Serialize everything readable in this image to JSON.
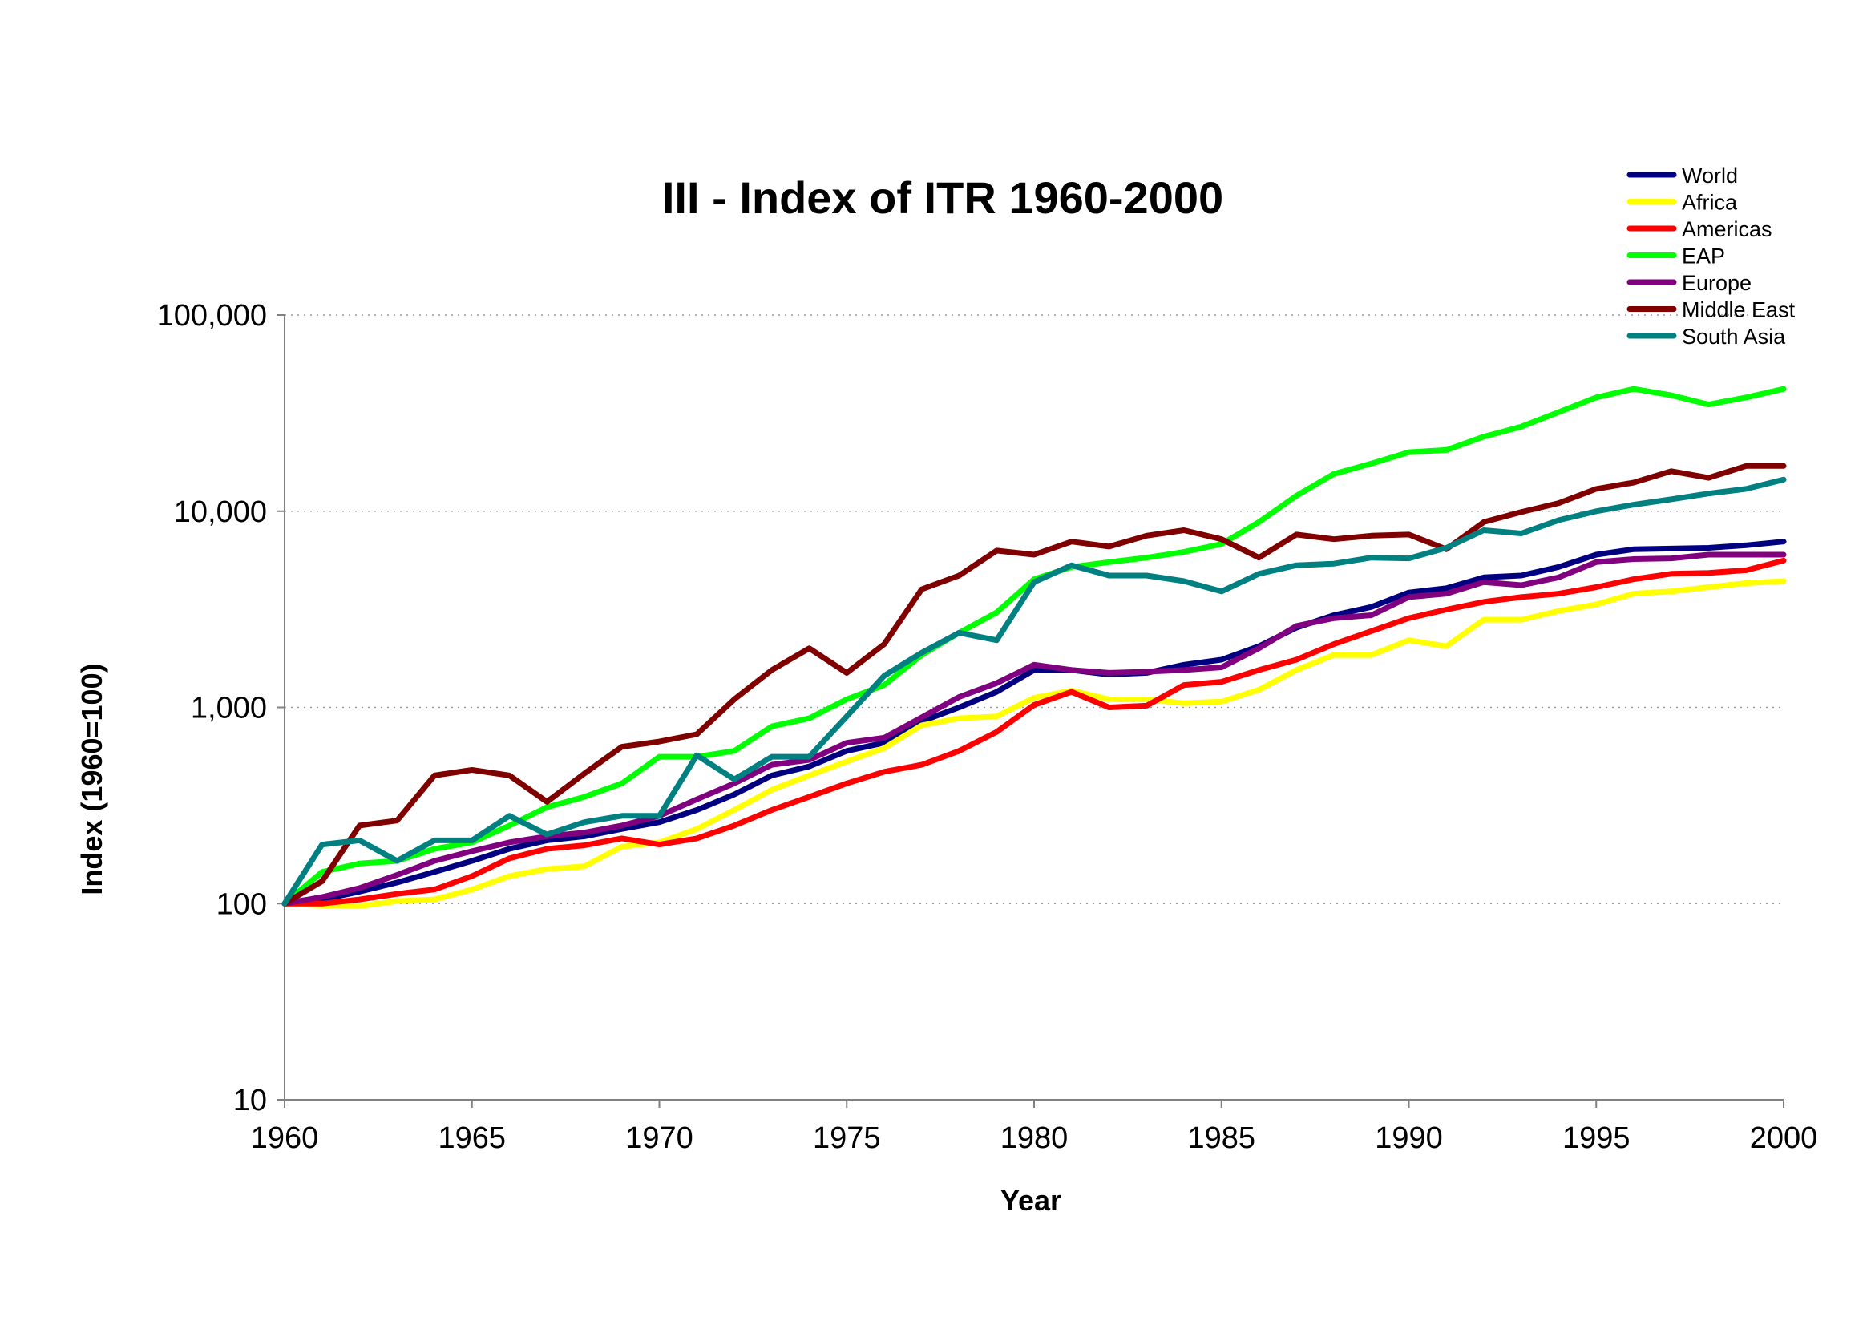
{
  "chart_data": {
    "type": "line",
    "title": "III - Index of ITR 1960-2000",
    "xlabel": "Year",
    "ylabel": "Index (1960=100)",
    "yscale": "log",
    "xlim": [
      1960,
      2000
    ],
    "ylim": [
      10,
      100000
    ],
    "xticks": [
      1960,
      1965,
      1970,
      1975,
      1980,
      1985,
      1990,
      1995,
      2000
    ],
    "xtick_labels": [
      "1960",
      "1965",
      "1970",
      "1975",
      "1980",
      "1985",
      "1990",
      "1995",
      "2000"
    ],
    "yticks": [
      10,
      100,
      1000,
      10000,
      100000
    ],
    "ytick_labels": [
      "10",
      "100",
      "1,000",
      "10,000",
      "100,000"
    ],
    "grid": "horizontal dotted",
    "legend": "top-right",
    "x": [
      1960,
      1961,
      1962,
      1963,
      1964,
      1965,
      1966,
      1967,
      1968,
      1969,
      1970,
      1971,
      1972,
      1973,
      1974,
      1975,
      1976,
      1977,
      1978,
      1979,
      1980,
      1981,
      1982,
      1983,
      1984,
      1985,
      1986,
      1987,
      1988,
      1989,
      1990,
      1991,
      1992,
      1993,
      1994,
      1995,
      1996,
      1997,
      1998,
      1999,
      2000
    ],
    "series": [
      {
        "name": "World",
        "color": "#000080",
        "values": [
          100,
          105,
          115,
          128,
          145,
          165,
          190,
          210,
          220,
          240,
          260,
          300,
          360,
          450,
          500,
          600,
          660,
          850,
          1000,
          1200,
          1550,
          1550,
          1470,
          1500,
          1650,
          1750,
          2050,
          2550,
          2950,
          3250,
          3850,
          4050,
          4600,
          4700,
          5200,
          6000,
          6400,
          6450,
          6500,
          6700,
          7000
        ]
      },
      {
        "name": "Africa",
        "color": "#FFFF00",
        "values": [
          100,
          98,
          97,
          103,
          105,
          118,
          138,
          150,
          155,
          195,
          205,
          240,
          300,
          380,
          450,
          530,
          620,
          810,
          880,
          900,
          1120,
          1220,
          1100,
          1100,
          1050,
          1070,
          1230,
          1550,
          1850,
          1850,
          2200,
          2050,
          2800,
          2800,
          3100,
          3350,
          3800,
          3900,
          4100,
          4300,
          4400
        ]
      },
      {
        "name": "Americas",
        "color": "#FF0000",
        "values": [
          100,
          100,
          105,
          112,
          118,
          138,
          170,
          190,
          198,
          215,
          200,
          215,
          250,
          300,
          350,
          410,
          470,
          510,
          600,
          750,
          1030,
          1200,
          1000,
          1020,
          1300,
          1350,
          1550,
          1750,
          2100,
          2450,
          2850,
          3150,
          3450,
          3650,
          3800,
          4100,
          4500,
          4800,
          4850,
          5000,
          5600
        ]
      },
      {
        "name": "EAP",
        "color": "#00FF00",
        "values": [
          100,
          145,
          160,
          165,
          190,
          205,
          250,
          310,
          350,
          410,
          560,
          560,
          600,
          800,
          880,
          1100,
          1300,
          1850,
          2400,
          3050,
          4500,
          5200,
          5500,
          5800,
          6200,
          6800,
          8800,
          12000,
          15500,
          17500,
          20000,
          20500,
          24000,
          27000,
          32000,
          38000,
          42000,
          39000,
          35000,
          38000,
          42000
        ]
      },
      {
        "name": "Europe",
        "color": "#800080",
        "values": [
          100,
          108,
          120,
          140,
          165,
          185,
          205,
          220,
          230,
          250,
          280,
          340,
          410,
          510,
          540,
          660,
          700,
          890,
          1130,
          1330,
          1650,
          1550,
          1500,
          1520,
          1550,
          1600,
          2000,
          2600,
          2850,
          2950,
          3650,
          3800,
          4350,
          4200,
          4600,
          5500,
          5700,
          5750,
          6000,
          6000,
          6000
        ]
      },
      {
        "name": "Middle East",
        "color": "#800000",
        "values": [
          100,
          130,
          250,
          265,
          450,
          480,
          450,
          330,
          460,
          630,
          670,
          730,
          1100,
          1550,
          2000,
          1500,
          2100,
          4000,
          4700,
          6300,
          6000,
          7000,
          6600,
          7500,
          8000,
          7200,
          5800,
          7600,
          7200,
          7500,
          7600,
          6400,
          8800,
          9900,
          11000,
          13000,
          14000,
          16000,
          14800,
          17000,
          17000
        ]
      },
      {
        "name": "South Asia",
        "color": "#008080",
        "values": [
          100,
          200,
          210,
          165,
          210,
          210,
          280,
          225,
          260,
          280,
          280,
          570,
          430,
          560,
          560,
          900,
          1450,
          1900,
          2400,
          2200,
          4350,
          5300,
          4700,
          4700,
          4400,
          3900,
          4800,
          5300,
          5400,
          5800,
          5750,
          6500,
          8000,
          7700,
          9000,
          10000,
          10800,
          11500,
          12300,
          13000,
          14500
        ]
      }
    ]
  }
}
